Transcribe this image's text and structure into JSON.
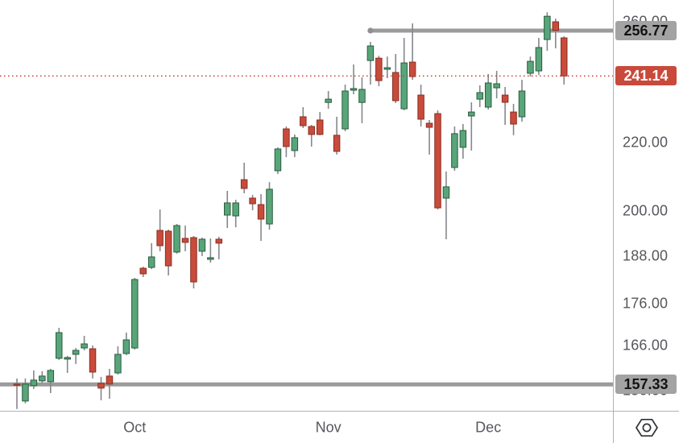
{
  "chart_data": {
    "type": "candlestick",
    "colors": {
      "up_fill": "#58a579",
      "up_border": "#2a5c3f",
      "down_fill": "#c84b3c",
      "down_border": "#8c2e20",
      "wick": "#85878c",
      "ray": "#9b9b9b",
      "price_line": "#c9493a"
    },
    "candles": [
      [
        157.4,
        158.63,
        152.06,
        157.15
      ],
      [
        153.76,
        158.63,
        153.25,
        157.41
      ],
      [
        157.06,
        160.4,
        156.36,
        158.28
      ],
      [
        158.11,
        160.22,
        157.58,
        159.16
      ],
      [
        157.93,
        160.76,
        155.47,
        160.4
      ],
      [
        163.12,
        170.15,
        162.76,
        169.03
      ],
      [
        162.94,
        163.66,
        159.86,
        163.3
      ],
      [
        164.02,
        165.47,
        161.85,
        164.93
      ],
      [
        165.47,
        168.28,
        164.93,
        166.41
      ],
      [
        165.29,
        166.05,
        158.63,
        160.04
      ],
      [
        157.58,
        158.98,
        153.9,
        156.53
      ],
      [
        159.16,
        160.76,
        154.25,
        157.41
      ],
      [
        159.86,
        165.86,
        159.51,
        164.02
      ],
      [
        164.2,
        169.03,
        163.84,
        167.34
      ],
      [
        165.47,
        182.33,
        165.11,
        181.93
      ],
      [
        184.78,
        185.19,
        182.54,
        183.36
      ],
      [
        185.0,
        191.31,
        184.57,
        187.71
      ],
      [
        194.72,
        200.45,
        189.18,
        190.65
      ],
      [
        194.51,
        194.94,
        182.95,
        185.4
      ],
      [
        188.97,
        196.47,
        188.55,
        196.03
      ],
      [
        192.58,
        196.03,
        189.18,
        191.52
      ],
      [
        192.79,
        193.22,
        179.7,
        181.32
      ],
      [
        189.18,
        192.79,
        187.92,
        192.36
      ],
      [
        187.08,
        192.57,
        186.24,
        187.5
      ],
      [
        192.36,
        193.0,
        187.08,
        191.31
      ],
      [
        198.9,
        205.67,
        195.37,
        202.27
      ],
      [
        198.68,
        203.17,
        195.58,
        202.27
      ],
      [
        208.89,
        213.86,
        204.98,
        206.37
      ],
      [
        203.62,
        204.52,
        200.22,
        202.04
      ],
      [
        201.81,
        204.75,
        191.91,
        197.79
      ],
      [
        196.47,
        208.18,
        194.93,
        206.14
      ],
      [
        211.49,
        218.45,
        210.53,
        217.96
      ],
      [
        224.11,
        224.85,
        215.52,
        218.69
      ],
      [
        217.48,
        222.38,
        215.52,
        221.39
      ],
      [
        227.9,
        230.96,
        224.36,
        225.1
      ],
      [
        224.85,
        225.35,
        218.69,
        222.38
      ],
      [
        226.88,
        229.4,
        222.14,
        222.38
      ],
      [
        232.46,
        236.17,
        230.44,
        233.51
      ],
      [
        222.13,
        227.9,
        216.28,
        217.23
      ],
      [
        224.11,
        238.28,
        223.37,
        236.17
      ],
      [
        236.43,
        245.0,
        235.11,
        236.97
      ],
      [
        232.46,
        240.68,
        225.86,
        236.7
      ],
      [
        246.35,
        252.78,
        238.28,
        251.38
      ],
      [
        247.16,
        247.97,
        237.75,
        239.6
      ],
      [
        243.38,
        247.7,
        240.4,
        243.92
      ],
      [
        242.3,
        248.59,
        232.25,
        233.03
      ],
      [
        230.44,
        254.18,
        229.92,
        245.54
      ],
      [
        245.81,
        259.34,
        239.87,
        240.93
      ],
      [
        234.84,
        238.28,
        224.85,
        227.13
      ],
      [
        225.86,
        226.88,
        216.28,
        224.6
      ],
      [
        228.89,
        229.92,
        200.45,
        200.9
      ],
      [
        203.62,
        211.26,
        192.36,
        206.83
      ],
      [
        212.44,
        224.85,
        211.49,
        222.63
      ],
      [
        218.45,
        225.6,
        215.05,
        223.61
      ],
      [
        228.15,
        232.51,
        217.48,
        229.4
      ],
      [
        233.52,
        238.01,
        230.96,
        235.64
      ],
      [
        230.96,
        241.76,
        230.18,
        238.81
      ],
      [
        237.22,
        242.84,
        233.78,
        238.55
      ],
      [
        234.84,
        237.48,
        225.35,
        232.51
      ],
      [
        229.4,
        232.0,
        222.14,
        225.6
      ],
      [
        227.89,
        239.87,
        226.37,
        236.17
      ],
      [
        242.03,
        247.7,
        240.95,
        246.08
      ],
      [
        242.84,
        254.19,
        241.49,
        250.82
      ],
      [
        253.62,
        263.36,
        249.69,
        261.92
      ],
      [
        259.92,
        261.06,
        250.53,
        256.81
      ],
      [
        254.19,
        254.75,
        238.28,
        241.14
      ]
    ],
    "last_price": 241.14,
    "levels": [
      {
        "label": "256.77",
        "value": 256.77,
        "style": "horizontal-ray",
        "starts_at_candle": 42
      },
      {
        "label": "157.33",
        "value": 157.33,
        "style": "horizontal-line",
        "starts_at_candle": null
      }
    ],
    "price_line": {
      "label": "241.14",
      "value": 241.14,
      "style": "dotted"
    },
    "y_axis": {
      "scale": "log",
      "ticks": [
        {
          "value": 260,
          "label": "260.00"
        },
        {
          "value": 220,
          "label": "220.00"
        },
        {
          "value": 200,
          "label": "200.00"
        },
        {
          "value": 188,
          "label": "188.00"
        },
        {
          "value": 176,
          "label": "176.00"
        },
        {
          "value": 166,
          "label": "166.00"
        },
        {
          "value": 156,
          "label": "156.00"
        }
      ]
    },
    "x_axis": {
      "months": [
        {
          "label": "Oct",
          "candle_index": 14
        },
        {
          "label": "Nov",
          "candle_index": 37
        },
        {
          "label": "Dec",
          "candle_index": 56
        }
      ]
    }
  },
  "corner": {
    "icon": "settings-hexagon"
  }
}
